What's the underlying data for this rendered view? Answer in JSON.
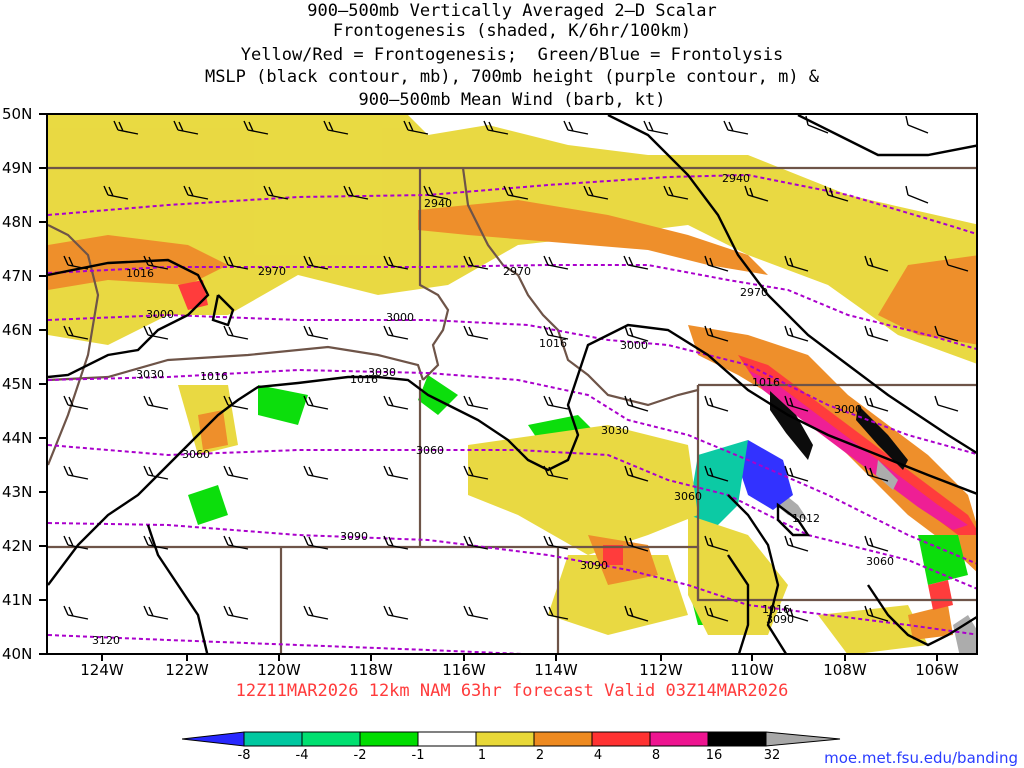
{
  "title": {
    "lines": [
      "900–500mb Vertically Averaged 2–D Scalar",
      "Frontogenesis (shaded, K/6hr/100km)",
      "Yellow/Red = Frontogenesis;  Green/Blue = Frontolysis",
      "MSLP (black contour, mb), 700mb height (purple contour, m) &",
      "900–500mb Mean Wind (barb, kt)"
    ]
  },
  "footer": "12Z11MAR2026 12km NAM 63hr forecast Valid 03Z14MAR2026",
  "credit": "moe.met.fsu.edu/banding",
  "axes": {
    "lat_labels": [
      "50N",
      "49N",
      "48N",
      "47N",
      "46N",
      "45N",
      "44N",
      "43N",
      "42N",
      "41N",
      "40N"
    ],
    "lon_labels": [
      "124W",
      "122W",
      "120W",
      "118W",
      "116W",
      "114W",
      "112W",
      "110W",
      "108W",
      "106W"
    ]
  },
  "contour_labels": {
    "height": [
      "2940",
      "2940",
      "2970",
      "2970",
      "2970",
      "3000",
      "3000",
      "3000",
      "3000",
      "3030",
      "3030",
      "3030",
      "3060",
      "3060",
      "3060",
      "3060",
      "3090",
      "3090",
      "3090",
      "3120"
    ],
    "mslp": [
      "1016",
      "1016",
      "1016",
      "1016",
      "1016",
      "1016",
      "1012"
    ]
  },
  "colorbar": {
    "labels": [
      "-8",
      "-4",
      "-2",
      "-1",
      "1",
      "2",
      "4",
      "8",
      "16",
      "32"
    ],
    "colors": [
      "#2828ff",
      "#00c8a0",
      "#00e070",
      "#00dd00",
      "#ffffff",
      "#e8d838",
      "#ee8a20",
      "#ff3232",
      "#ee1490",
      "#000000",
      "#a8a8a8"
    ]
  },
  "colors": {
    "height_contour": "#aa00cc",
    "mslp_contour": "#000000",
    "border": "#6e5448",
    "footer": "#ff3b3b",
    "credit": "#2a3cff"
  }
}
